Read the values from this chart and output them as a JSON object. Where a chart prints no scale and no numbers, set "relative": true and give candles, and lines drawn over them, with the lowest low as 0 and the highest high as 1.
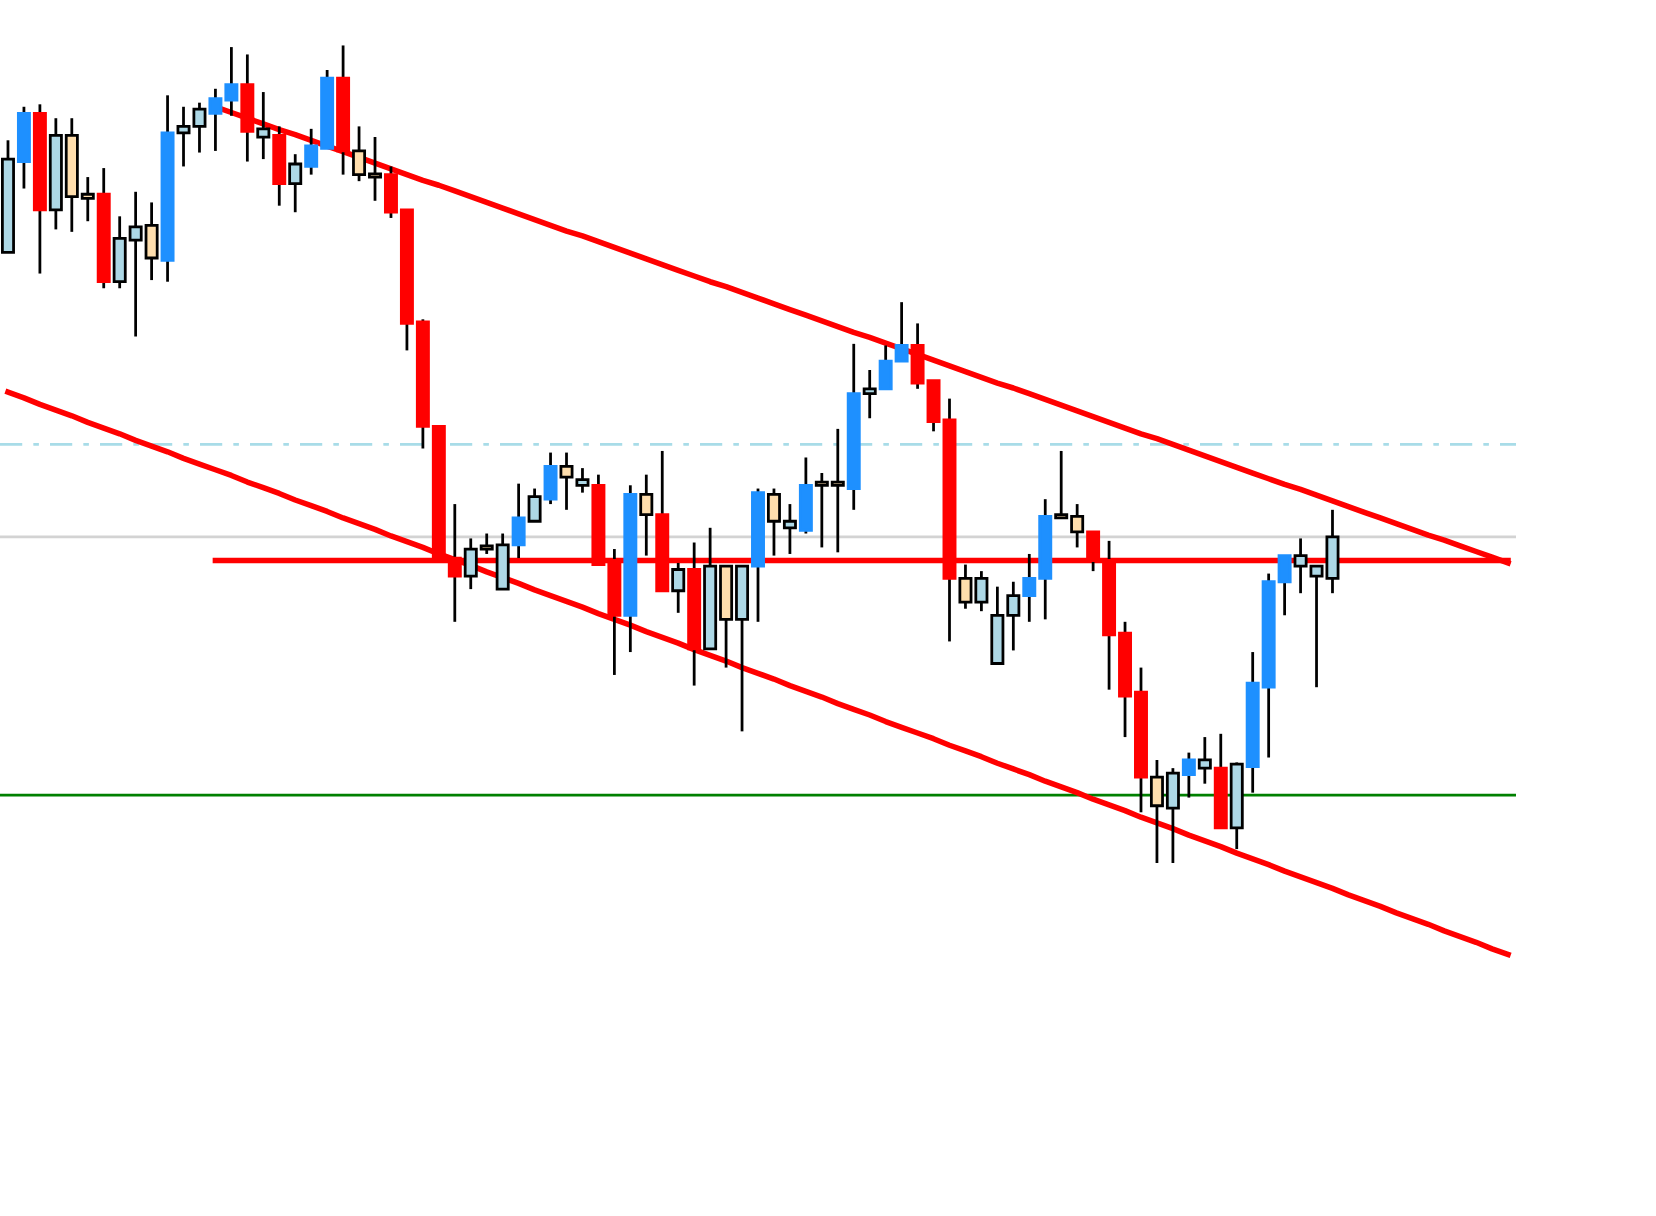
{
  "chart_data": {
    "type": "candlestick",
    "relative": true,
    "categories": [
      null,
      null,
      null,
      null,
      null,
      null,
      null,
      null,
      null,
      null,
      null,
      null,
      null,
      null,
      null,
      null,
      null,
      null,
      null,
      null,
      null,
      null,
      null,
      null,
      null,
      null,
      null,
      null,
      null,
      null,
      null,
      null,
      null,
      null,
      null,
      null,
      null,
      null,
      null,
      null,
      null,
      null,
      null,
      null,
      null,
      null,
      null,
      null,
      null,
      null,
      null,
      null,
      null,
      null,
      null,
      null,
      null,
      null,
      null,
      null,
      null,
      null,
      null,
      null,
      null,
      null,
      null,
      null,
      null,
      null,
      null,
      null,
      null,
      null,
      null,
      null,
      null,
      null,
      null,
      null,
      null,
      null,
      null,
      null,
      null,
      null,
      null,
      null,
      null,
      null,
      null,
      null,
      null,
      null,
      null
    ],
    "ohlc": [
      [
        0.747,
        0.884,
        0.747,
        0.861
      ],
      [
        0.858,
        0.925,
        0.825,
        0.917
      ],
      [
        0.917,
        0.928,
        0.721,
        0.799
      ],
      [
        0.799,
        0.911,
        0.775,
        0.89
      ],
      [
        0.89,
        0.911,
        0.772,
        0.815
      ],
      [
        0.818,
        0.839,
        0.785,
        0.813
      ],
      [
        0.818,
        0.85,
        0.703,
        0.711
      ],
      [
        0.711,
        0.791,
        0.703,
        0.764
      ],
      [
        0.762,
        0.821,
        0.644,
        0.778
      ],
      [
        0.78,
        0.808,
        0.713,
        0.74
      ],
      [
        0.737,
        0.939,
        0.711,
        0.893
      ],
      [
        0.893,
        0.925,
        0.852,
        0.901
      ],
      [
        0.901,
        0.93,
        0.869,
        0.922
      ],
      [
        0.917,
        0.947,
        0.871,
        0.935
      ],
      [
        0.933,
        0.998,
        0.914,
        0.952
      ],
      [
        0.952,
        0.989,
        0.858,
        0.895
      ],
      [
        0.888,
        0.943,
        0.861,
        0.898
      ],
      [
        0.89,
        0.901,
        0.804,
        0.831
      ],
      [
        0.831,
        0.867,
        0.796,
        0.855
      ],
      [
        0.852,
        0.898,
        0.842,
        0.877
      ],
      [
        0.874,
        0.97,
        0.874,
        0.96
      ],
      [
        0.96,
        1,
        0.842,
        0.871
      ],
      [
        0.871,
        0.901,
        0.834,
        0.842
      ],
      [
        0.842,
        0.888,
        0.81,
        0.839
      ],
      [
        0.842,
        0.852,
        0.789,
        0.796
      ],
      [
        0.799,
        0.799,
        0.627,
        0.66
      ],
      [
        0.662,
        0.665,
        0.507,
        0.534
      ],
      [
        0.534,
        0.534,
        0.373,
        0.373
      ],
      [
        0.373,
        0.439,
        0.295,
        0.351
      ],
      [
        0.351,
        0.397,
        0.335,
        0.384
      ],
      [
        0.388,
        0.403,
        0.378,
        0.384
      ],
      [
        0.335,
        0.403,
        0.335,
        0.389
      ],
      [
        0.389,
        0.464,
        0.373,
        0.422
      ],
      [
        0.418,
        0.458,
        0.418,
        0.448
      ],
      [
        0.445,
        0.502,
        0.439,
        0.485
      ],
      [
        0.485,
        0.502,
        0.432,
        0.472
      ],
      [
        0.462,
        0.483,
        0.453,
        0.469
      ],
      [
        0.462,
        0.475,
        0.365,
        0.365
      ],
      [
        0.37,
        0.384,
        0.23,
        0.303
      ],
      [
        0.303,
        0.462,
        0.258,
        0.451
      ],
      [
        0.451,
        0.475,
        0.376,
        0.426
      ],
      [
        0.426,
        0.504,
        0.333,
        0.333
      ],
      [
        0.333,
        0.367,
        0.306,
        0.359
      ],
      [
        0.359,
        0.392,
        0.217,
        0.262
      ],
      [
        0.262,
        0.41,
        0.262,
        0.363
      ],
      [
        0.363,
        0.363,
        0.239,
        0.298
      ],
      [
        0.298,
        0.363,
        0.161,
        0.363
      ],
      [
        0.363,
        0.458,
        0.295,
        0.453
      ],
      [
        0.451,
        0.458,
        0.376,
        0.418
      ],
      [
        0.41,
        0.439,
        0.378,
        0.418
      ],
      [
        0.407,
        0.496,
        0.403,
        0.462
      ],
      [
        0.464,
        0.477,
        0.386,
        0.462
      ],
      [
        0.464,
        0.531,
        0.38,
        0.462
      ],
      [
        0.458,
        0.635,
        0.432,
        0.574
      ],
      [
        0.574,
        0.603,
        0.544,
        0.58
      ],
      [
        0.58,
        0.633,
        0.58,
        0.614
      ],
      [
        0.614,
        0.686,
        0.614,
        0.633
      ],
      [
        0.633,
        0.66,
        0.58,
        0.587
      ],
      [
        0.59,
        0.59,
        0.528,
        0.54
      ],
      [
        0.542,
        0.568,
        0.271,
        0.348
      ],
      [
        0.348,
        0.365,
        0.311,
        0.319
      ],
      [
        0.319,
        0.357,
        0.308,
        0.348
      ],
      [
        0.244,
        0.338,
        0.244,
        0.303
      ],
      [
        0.303,
        0.344,
        0.26,
        0.327
      ],
      [
        0.327,
        0.378,
        0.295,
        0.348
      ],
      [
        0.348,
        0.445,
        0.298,
        0.424
      ],
      [
        0.424,
        0.504,
        0.422,
        0.422
      ],
      [
        0.424,
        0.439,
        0.386,
        0.405
      ],
      [
        0.405,
        0.405,
        0.357,
        0.37
      ],
      [
        0.37,
        0.394,
        0.212,
        0.279
      ],
      [
        0.281,
        0.295,
        0.154,
        0.204
      ],
      [
        0.209,
        0.239,
        0.062,
        0.105
      ],
      [
        0.105,
        0.126,
        0,
        0.07
      ],
      [
        0.067,
        0.116,
        0,
        0.11
      ],
      [
        0.108,
        0.135,
        0.08,
        0.126
      ],
      [
        0.116,
        0.154,
        0.097,
        0.126
      ],
      [
        0.116,
        0.158,
        0.043,
        0.043
      ],
      [
        0.043,
        0.123,
        0.017,
        0.121
      ],
      [
        0.118,
        0.258,
        0.086,
        0.22
      ],
      [
        0.215,
        0.354,
        0.129,
        0.344
      ],
      [
        0.344,
        0.376,
        0.303,
        0.376
      ],
      [
        0.363,
        0.397,
        0.33,
        0.376
      ],
      [
        0.351,
        0.363,
        0.215,
        0.363
      ],
      [
        0.348,
        0.432,
        0.33,
        0.399
      ],
      null,
      null,
      null,
      null,
      null,
      null,
      null,
      null,
      null,
      null,
      null
    ],
    "colors": [
      "#add8e6",
      "#1e90ff",
      "#ff0000",
      "#add8e6",
      "#ffdead",
      "#ffdead",
      "#ff0000",
      "#add8e6",
      "#add8e6",
      "#ffdead",
      "#1e90ff",
      "#add8e6",
      "#add8e6",
      "#1e90ff",
      "#1e90ff",
      "#ff0000",
      "#add8e6",
      "#ff0000",
      "#add8e6",
      "#1e90ff",
      "#1e90ff",
      "#ff0000",
      "#ffdead",
      "#ffdead",
      "#ff0000",
      "#ff0000",
      "#ff0000",
      "#ff0000",
      "#ff0000",
      "#add8e6",
      "#ffdead",
      "#add8e6",
      "#1e90ff",
      "#add8e6",
      "#1e90ff",
      "#ffdead",
      "#add8e6",
      "#ff0000",
      "#ff0000",
      "#1e90ff",
      "#ffdead",
      "#ff0000",
      "#add8e6",
      "#ff0000",
      "#add8e6",
      "#ffdead",
      "#add8e6",
      "#1e90ff",
      "#ffdead",
      "#add8e6",
      "#1e90ff",
      "#ffdead",
      "#ffdead",
      "#1e90ff",
      "#add8e6",
      "#1e90ff",
      "#1e90ff",
      "#ff0000",
      "#ff0000",
      "#ff0000",
      "#ffdead",
      "#add8e6",
      "#add8e6",
      "#add8e6",
      "#1e90ff",
      "#1e90ff",
      "#ffdead",
      "#ffdead",
      "#ff0000",
      "#ff0000",
      "#ff0000",
      "#ff0000",
      "#ffdead",
      "#add8e6",
      "#1e90ff",
      "#add8e6",
      "#ff0000",
      "#add8e6",
      "#1e90ff",
      "#1e90ff",
      "#1e90ff",
      "#add8e6",
      "#add8e6",
      "#add8e6",
      null,
      null,
      null,
      null,
      null,
      null,
      null,
      null,
      null,
      null,
      null
    ],
    "series": [
      {
        "type": "line",
        "color": "#ff0000",
        "values": [
          null,
          null,
          null,
          null,
          null,
          null,
          null,
          null,
          null,
          null,
          null,
          null,
          null,
          0.925,
          0.918,
          0.911,
          0.904,
          0.897,
          0.891,
          0.884,
          0.877,
          0.87,
          0.863,
          0.856,
          0.849,
          0.842,
          0.835,
          0.829,
          0.822,
          0.815,
          0.808,
          0.801,
          0.794,
          0.787,
          0.78,
          0.773,
          0.767,
          0.76,
          0.753,
          0.746,
          0.739,
          0.732,
          0.725,
          0.718,
          0.711,
          0.705,
          0.698,
          0.691,
          0.684,
          0.677,
          0.67,
          0.663,
          0.656,
          0.649,
          0.643,
          0.636,
          0.629,
          0.622,
          0.615,
          0.608,
          0.601,
          0.594,
          0.587,
          0.581,
          0.574,
          0.567,
          0.56,
          0.553,
          0.546,
          0.539,
          0.532,
          0.525,
          0.519,
          0.512,
          0.505,
          0.498,
          0.491,
          0.484,
          0.477,
          0.47,
          0.463,
          0.457,
          0.45,
          0.443,
          0.436,
          0.429,
          0.422,
          0.415,
          0.408,
          0.401,
          0.395,
          0.388,
          0.381,
          0.374,
          0.367
        ]
      },
      {
        "type": "line",
        "color": "#ff0000",
        "values": [
          0.576,
          0.569,
          0.561,
          0.554,
          0.547,
          0.539,
          0.532,
          0.525,
          0.517,
          0.51,
          0.503,
          0.495,
          0.488,
          0.481,
          0.474,
          0.466,
          0.459,
          0.452,
          0.444,
          0.437,
          0.43,
          0.422,
          0.415,
          0.408,
          0.4,
          0.393,
          0.386,
          0.378,
          0.371,
          0.364,
          0.356,
          0.349,
          0.342,
          0.334,
          0.327,
          0.32,
          0.313,
          0.305,
          0.298,
          0.291,
          0.283,
          0.276,
          0.269,
          0.261,
          0.254,
          0.247,
          0.239,
          0.232,
          0.225,
          0.217,
          0.21,
          0.203,
          0.195,
          0.188,
          0.181,
          0.173,
          0.166,
          0.159,
          0.152,
          0.144,
          0.137,
          0.13,
          0.122,
          0.115,
          0.108,
          0.1,
          0.093,
          0.086,
          0.078,
          0.071,
          0.064,
          0.056,
          0.049,
          0.042,
          0.034,
          0.027,
          0.02,
          0.012,
          0.005,
          -0.002,
          -0.01,
          -0.017,
          -0.024,
          -0.031,
          -0.039,
          -0.046,
          -0.053,
          -0.061,
          -0.068,
          -0.075,
          -0.083,
          -0.09,
          -0.097,
          -0.105,
          -0.112
        ]
      },
      {
        "type": "line",
        "color": "#ff0000",
        "values": [
          null,
          null,
          null,
          null,
          null,
          null,
          null,
          null,
          null,
          null,
          null,
          null,
          null,
          0.37,
          0.37,
          0.37,
          0.37,
          0.37,
          0.37,
          0.37,
          0.37,
          0.37,
          0.37,
          0.37,
          0.37,
          0.37,
          0.37,
          0.37,
          0.37,
          0.37,
          0.37,
          0.37,
          0.37,
          0.37,
          0.37,
          0.37,
          0.37,
          0.37,
          0.37,
          0.37,
          0.37,
          0.37,
          0.37,
          0.37,
          0.37,
          0.37,
          0.37,
          0.37,
          0.37,
          0.37,
          0.37,
          0.37,
          0.37,
          0.37,
          0.37,
          0.37,
          0.37,
          0.37,
          0.37,
          0.37,
          0.37,
          0.37,
          0.37,
          0.37,
          0.37,
          0.37,
          0.37,
          0.37,
          0.37,
          0.37,
          0.37,
          0.37,
          0.37,
          0.37,
          0.37,
          0.37,
          0.37,
          0.37,
          0.37,
          0.37,
          0.37,
          0.37,
          0.37,
          0.37,
          0.37,
          0.37,
          0.37,
          0.37,
          0.37,
          0.37,
          0.37,
          0.37,
          0.37,
          0.37,
          0.37
        ]
      }
    ],
    "ref_lines": [
      {
        "axis": "y",
        "value": 0.512,
        "color": "#a8dce8",
        "line_style": "dashed"
      },
      {
        "axis": "y",
        "value": 0.399,
        "color": "#d3d3d3",
        "line_style": "solid"
      },
      {
        "axis": "y",
        "value": 0.083,
        "color": "#008000",
        "line_style": "solid"
      }
    ]
  }
}
